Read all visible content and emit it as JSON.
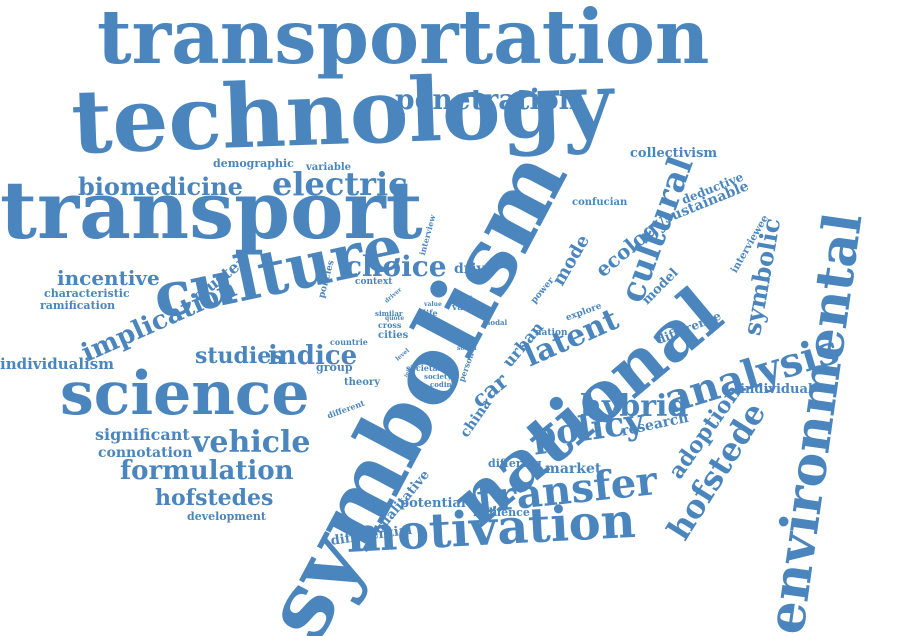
{
  "color": "#4a86bd",
  "words": [
    {
      "text": "transportation"
    },
    {
      "text": "technology"
    },
    {
      "text": "transport"
    },
    {
      "text": "symbolism"
    },
    {
      "text": "national"
    },
    {
      "text": "culture"
    },
    {
      "text": "science"
    },
    {
      "text": "motivation"
    },
    {
      "text": "environmental"
    },
    {
      "text": "penetration"
    },
    {
      "text": "electric"
    },
    {
      "text": "biomedicine"
    },
    {
      "text": "choice"
    },
    {
      "text": "analysis"
    },
    {
      "text": "policy"
    },
    {
      "text": "transfer"
    },
    {
      "text": "vehicle"
    },
    {
      "text": "formulation"
    },
    {
      "text": "hofstedes"
    },
    {
      "text": "hofstede"
    },
    {
      "text": "hybrid"
    },
    {
      "text": "latent"
    },
    {
      "text": "cultural"
    },
    {
      "text": "implication"
    },
    {
      "text": "incentive"
    },
    {
      "text": "studies"
    },
    {
      "text": "indice"
    },
    {
      "text": "individualism"
    },
    {
      "text": "significant"
    },
    {
      "text": "connotation"
    },
    {
      "text": "development"
    },
    {
      "text": "adoption"
    },
    {
      "text": "symbolic"
    },
    {
      "text": "sustainable"
    },
    {
      "text": "collectivism"
    },
    {
      "text": "deductive"
    },
    {
      "text": "confucian"
    },
    {
      "text": "ecology"
    },
    {
      "text": "mode"
    },
    {
      "text": "car"
    },
    {
      "text": "urban"
    },
    {
      "text": "china"
    },
    {
      "text": "research"
    },
    {
      "text": "market"
    },
    {
      "text": "potential"
    },
    {
      "text": "influence"
    },
    {
      "text": "differential"
    },
    {
      "text": "qualitative"
    },
    {
      "text": "differing"
    },
    {
      "text": "difference"
    },
    {
      "text": "individual"
    },
    {
      "text": "interviewee"
    },
    {
      "text": "model"
    },
    {
      "text": "cluster"
    },
    {
      "text": "characteristic"
    },
    {
      "text": "ramification"
    },
    {
      "text": "demographic"
    },
    {
      "text": "variable"
    },
    {
      "text": "drive"
    },
    {
      "text": "context"
    },
    {
      "text": "group"
    },
    {
      "text": "theory"
    },
    {
      "text": "different"
    },
    {
      "text": "cities"
    },
    {
      "text": "countrie"
    },
    {
      "text": "cross"
    },
    {
      "text": "nation"
    },
    {
      "text": "role"
    },
    {
      "text": "explore"
    },
    {
      "text": "varies"
    },
    {
      "text": "societal"
    },
    {
      "text": "society"
    },
    {
      "text": "coding"
    },
    {
      "text": "person"
    },
    {
      "text": "social"
    },
    {
      "text": "modal"
    },
    {
      "text": "power"
    },
    {
      "text": "policies"
    },
    {
      "text": "interview"
    },
    {
      "text": "life"
    },
    {
      "text": "similar"
    },
    {
      "text": "quote"
    },
    {
      "text": "value"
    },
    {
      "text": "driver"
    },
    {
      "text": "point"
    },
    {
      "text": "level"
    },
    {
      "text": "india"
    }
  ]
}
